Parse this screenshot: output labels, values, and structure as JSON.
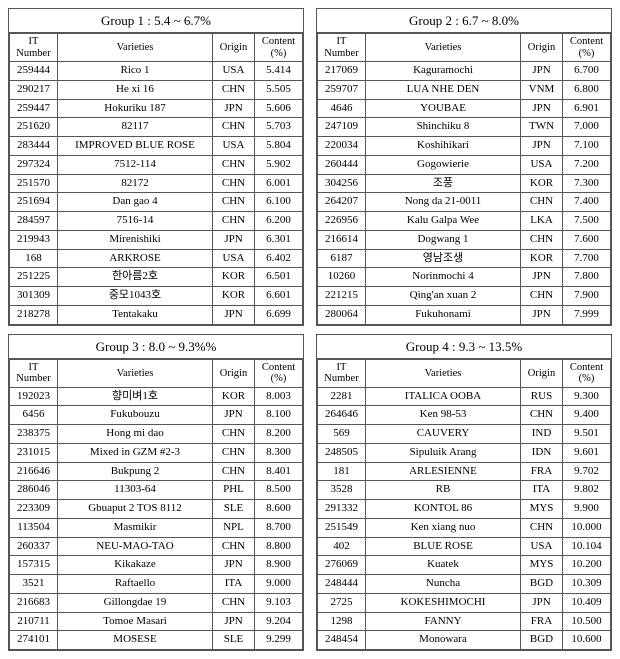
{
  "columns": [
    "IT\nNumber",
    "Varieties",
    "Origin",
    "Content\n(%)"
  ],
  "groups": [
    {
      "title": "Group 1 : 5.4 ~ 6.7%",
      "rows": [
        [
          "259444",
          "Rico 1",
          "USA",
          "5.414"
        ],
        [
          "290217",
          "He xi 16",
          "CHN",
          "5.505"
        ],
        [
          "259447",
          "Hokuriku 187",
          "JPN",
          "5.606"
        ],
        [
          "251620",
          "82117",
          "CHN",
          "5.703"
        ],
        [
          "283444",
          "IMPROVED BLUE ROSE",
          "USA",
          "5.804"
        ],
        [
          "297324",
          "7512-114",
          "CHN",
          "5.902"
        ],
        [
          "251570",
          "82172",
          "CHN",
          "6.001"
        ],
        [
          "251694",
          "Dan gao 4",
          "CHN",
          "6.100"
        ],
        [
          "284597",
          "7516-14",
          "CHN",
          "6.200"
        ],
        [
          "219943",
          "Mirenishiki",
          "JPN",
          "6.301"
        ],
        [
          "168",
          "ARKROSE",
          "USA",
          "6.402"
        ],
        [
          "251225",
          "한아름2호",
          "KOR",
          "6.501"
        ],
        [
          "301309",
          "중모1043호",
          "KOR",
          "6.601"
        ],
        [
          "218278",
          "Tentakaku",
          "JPN",
          "6.699"
        ]
      ]
    },
    {
      "title": "Group 2 : 6.7 ~ 8.0%",
      "rows": [
        [
          "217069",
          "Kaguramochi",
          "JPN",
          "6.700"
        ],
        [
          "259707",
          "LUA NHE DEN",
          "VNM",
          "6.800"
        ],
        [
          "4646",
          "YOUBAE",
          "JPN",
          "6.901"
        ],
        [
          "247109",
          "Shinchiku 8",
          "TWN",
          "7.000"
        ],
        [
          "220034",
          "Koshihikari",
          "JPN",
          "7.100"
        ],
        [
          "260444",
          "Gogowierie",
          "USA",
          "7.200"
        ],
        [
          "304256",
          "조풍",
          "KOR",
          "7.300"
        ],
        [
          "264207",
          "Nong da 21-0011",
          "CHN",
          "7.400"
        ],
        [
          "226956",
          "Kalu Galpa Wee",
          "LKA",
          "7.500"
        ],
        [
          "216614",
          "Dogwang 1",
          "CHN",
          "7.600"
        ],
        [
          "6187",
          "영남조생",
          "KOR",
          "7.700"
        ],
        [
          "10260",
          "Norinmochi 4",
          "JPN",
          "7.800"
        ],
        [
          "221215",
          "Qing'an xuan 2",
          "CHN",
          "7.900"
        ],
        [
          "280064",
          "Fukuhonami",
          "JPN",
          "7.999"
        ]
      ]
    },
    {
      "title": "Group 3 : 8.0 ~ 9.3%%",
      "rows": [
        [
          "192023",
          "향미벼1호",
          "KOR",
          "8.003"
        ],
        [
          "6456",
          "Fukubouzu",
          "JPN",
          "8.100"
        ],
        [
          "238375",
          "Hong mi dao",
          "CHN",
          "8.200"
        ],
        [
          "231015",
          "Mixed in GZM #2-3",
          "CHN",
          "8.300"
        ],
        [
          "216646",
          "Bukpung 2",
          "CHN",
          "8.401"
        ],
        [
          "286046",
          "11303-64",
          "PHL",
          "8.500"
        ],
        [
          "223309",
          "Gbuaput 2 TOS 8112",
          "SLE",
          "8.600"
        ],
        [
          "113504",
          "Masmikir",
          "NPL",
          "8.700"
        ],
        [
          "260337",
          "NEU-MAO-TAO",
          "CHN",
          "8.800"
        ],
        [
          "157315",
          "Kikakaze",
          "JPN",
          "8.900"
        ],
        [
          "3521",
          "Raftaello",
          "ITA",
          "9.000"
        ],
        [
          "216683",
          "Gillongdae 19",
          "CHN",
          "9.103"
        ],
        [
          "210711",
          "Tomoe Masari",
          "JPN",
          "9.204"
        ],
        [
          "274101",
          "MOSESE",
          "SLE",
          "9.299"
        ]
      ]
    },
    {
      "title": "Group 4 : 9.3 ~ 13.5%",
      "rows": [
        [
          "2281",
          "ITALICA OOBA",
          "RUS",
          "9.300"
        ],
        [
          "264646",
          "Ken 98-53",
          "CHN",
          "9.400"
        ],
        [
          "569",
          "CAUVERY",
          "IND",
          "9.501"
        ],
        [
          "248505",
          "Sipuluik Arang",
          "IDN",
          "9.601"
        ],
        [
          "181",
          "ARLESIENNE",
          "FRA",
          "9.702"
        ],
        [
          "3528",
          "RB",
          "ITA",
          "9.802"
        ],
        [
          "291332",
          "KONTOL 86",
          "MYS",
          "9.900"
        ],
        [
          "251549",
          "Ken xiang nuo",
          "CHN",
          "10.000"
        ],
        [
          "402",
          "BLUE ROSE",
          "USA",
          "10.104"
        ],
        [
          "276069",
          "Kuatek",
          "MYS",
          "10.200"
        ],
        [
          "248444",
          "Nuncha",
          "BGD",
          "10.309"
        ],
        [
          "2725",
          "KOKESHIMOCHI",
          "JPN",
          "10.409"
        ],
        [
          "1298",
          "FANNY",
          "FRA",
          "10.500"
        ],
        [
          "248454",
          "Monowara",
          "BGD",
          "10.600"
        ]
      ]
    }
  ]
}
